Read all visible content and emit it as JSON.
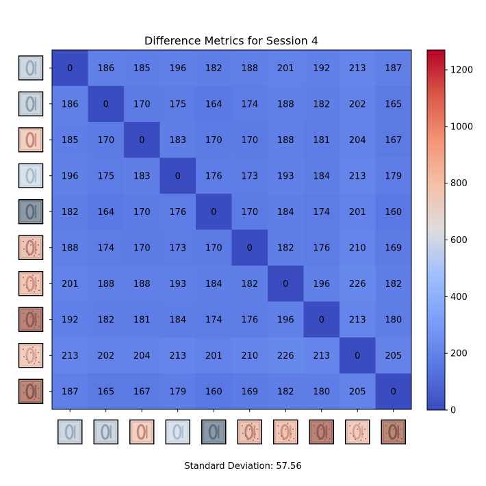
{
  "chart_data": {
    "type": "heatmap",
    "title": "Difference Metrics for Session 4",
    "footer": "Standard Deviation: 57.56",
    "values": [
      [
        0,
        186,
        185,
        196,
        182,
        188,
        201,
        192,
        213,
        187
      ],
      [
        186,
        0,
        170,
        175,
        164,
        174,
        188,
        182,
        202,
        165
      ],
      [
        185,
        170,
        0,
        183,
        170,
        170,
        188,
        181,
        204,
        167
      ],
      [
        196,
        175,
        183,
        0,
        176,
        173,
        193,
        184,
        213,
        179
      ],
      [
        182,
        164,
        170,
        176,
        0,
        170,
        184,
        174,
        201,
        160
      ],
      [
        188,
        174,
        170,
        173,
        170,
        0,
        182,
        176,
        210,
        169
      ],
      [
        201,
        188,
        188,
        193,
        184,
        182,
        0,
        196,
        226,
        182
      ],
      [
        192,
        182,
        181,
        184,
        174,
        176,
        196,
        0,
        213,
        180
      ],
      [
        213,
        202,
        204,
        213,
        201,
        210,
        226,
        213,
        0,
        205
      ],
      [
        187,
        165,
        167,
        179,
        160,
        169,
        182,
        180,
        205,
        0
      ]
    ],
    "colormap": "coolwarm",
    "vmin": 0,
    "vmax": 1270,
    "colorbar_ticks": [
      0,
      200,
      400,
      600,
      800,
      1000,
      1200
    ],
    "thumbnails": [
      {
        "name": "thumb-1",
        "bg": "#cfd8e0",
        "ink": "#8fa3b5",
        "dots": false
      },
      {
        "name": "thumb-2",
        "bg": "#cdd6de",
        "ink": "#7f95aa",
        "dots": false
      },
      {
        "name": "thumb-3",
        "bg": "#f0d2c4",
        "ink": "#c07a68",
        "dots": false
      },
      {
        "name": "thumb-4",
        "bg": "#d9e3ec",
        "ink": "#9fb6ca",
        "dots": false
      },
      {
        "name": "thumb-5",
        "bg": "#8c9aa6",
        "ink": "#556573",
        "dots": false
      },
      {
        "name": "thumb-6",
        "bg": "#eac6b8",
        "ink": "#b87868",
        "dots": true
      },
      {
        "name": "thumb-7",
        "bg": "#efc7b8",
        "ink": "#c98a7a",
        "dots": true
      },
      {
        "name": "thumb-8",
        "bg": "#b8857a",
        "ink": "#8a5448",
        "dots": true
      },
      {
        "name": "thumb-9",
        "bg": "#f0cfc2",
        "ink": "#d39c8c",
        "dots": true
      },
      {
        "name": "thumb-10",
        "bg": "#b98a7c",
        "ink": "#7e4e42",
        "dots": true
      }
    ]
  }
}
